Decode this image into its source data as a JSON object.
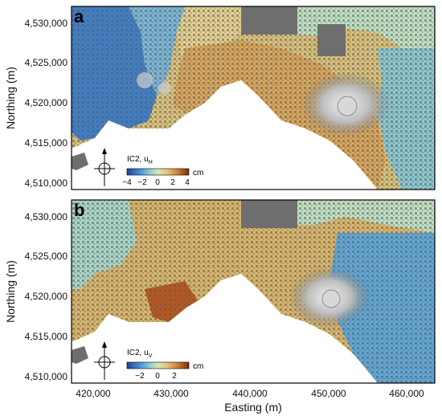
{
  "axes": {
    "xlabel": "Easting (m)",
    "ylabel": "Northing (m)",
    "xticks": [
      "420,000",
      "430,000",
      "440,000",
      "450,000",
      "460,000"
    ],
    "yticks": [
      "4,530,000",
      "4,525,000",
      "4,520,000",
      "4,515,000",
      "4,510,000"
    ]
  },
  "panels": [
    {
      "letter": "a",
      "component": "IC2, u",
      "component_sub": "H",
      "unit": "cm",
      "colorbar_ticks": [
        "−4",
        "−2",
        "0",
        "2",
        "4"
      ],
      "colormap": [
        "#2b5fbf",
        "#4f9ad6",
        "#8fd0d8",
        "#d6e7b3",
        "#e9c47a",
        "#d08a3a",
        "#9b3a10"
      ]
    },
    {
      "letter": "b",
      "component": "IC2, u",
      "component_sub": "V",
      "unit": "cm",
      "colorbar_ticks": [
        "−2",
        "0",
        "2"
      ],
      "colormap": [
        "#2b5fbf",
        "#4f9ad6",
        "#8fd0d8",
        "#d6e7b3",
        "#e9c47a",
        "#d08a3a",
        "#9b3a10"
      ]
    }
  ],
  "colors": {
    "sea": "#ffffff",
    "land_dark": "#6e6e6e",
    "frame": "#000000"
  }
}
